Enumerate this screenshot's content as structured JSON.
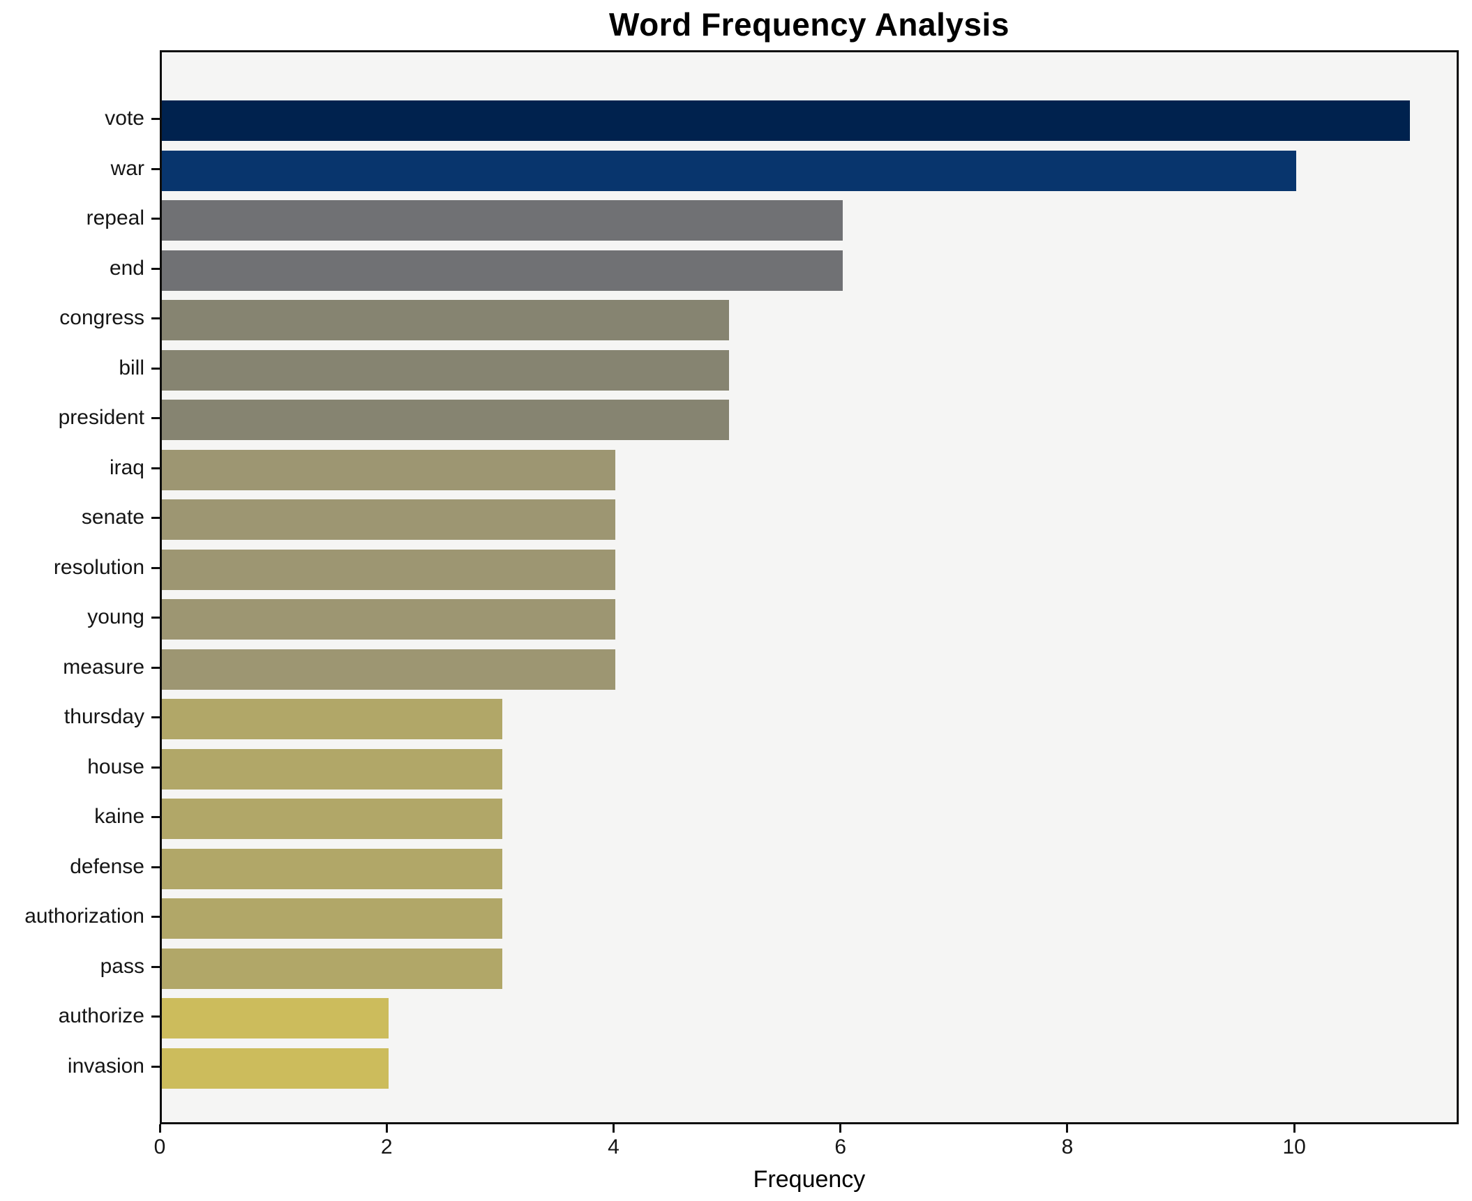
{
  "chart_data": {
    "type": "bar",
    "orientation": "horizontal",
    "title": "Word Frequency Analysis",
    "xlabel": "Frequency",
    "ylabel": "",
    "categories": [
      "vote",
      "war",
      "repeal",
      "end",
      "congress",
      "bill",
      "president",
      "iraq",
      "senate",
      "resolution",
      "young",
      "measure",
      "thursday",
      "house",
      "kaine",
      "defense",
      "authorization",
      "pass",
      "authorize",
      "invasion"
    ],
    "values": [
      11,
      10,
      6,
      6,
      5,
      5,
      5,
      4,
      4,
      4,
      4,
      4,
      3,
      3,
      3,
      3,
      3,
      3,
      2,
      2
    ],
    "bar_colors": [
      "#00224e",
      "#08356d",
      "#707174",
      "#707174",
      "#868471",
      "#868471",
      "#868471",
      "#9d9672",
      "#9d9672",
      "#9d9672",
      "#9d9672",
      "#9d9672",
      "#b1a768",
      "#b1a768",
      "#b1a768",
      "#b1a768",
      "#b1a768",
      "#b1a768",
      "#ccbc5c",
      "#ccbc5c"
    ],
    "x_ticks": [
      0,
      2,
      4,
      6,
      8,
      10
    ],
    "xlim": [
      0,
      11.45
    ],
    "grid": false,
    "legend": "none",
    "plot_background": "#f5f5f4",
    "figure_background": "#ffffff",
    "frame_color": "#0e0e0e"
  }
}
